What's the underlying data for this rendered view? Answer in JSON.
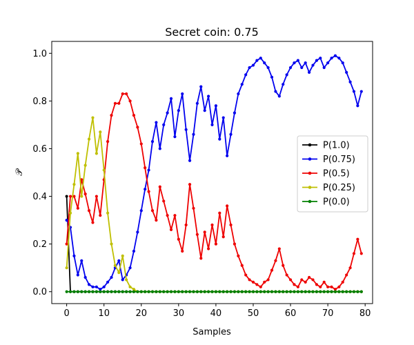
{
  "chart_data": {
    "type": "line",
    "title": "Secret coin: 0.75",
    "xlabel": "Samples",
    "ylabel": "𝒫",
    "xlim": [
      -4,
      82
    ],
    "ylim": [
      -0.05,
      1.05
    ],
    "xticks": [
      0,
      10,
      20,
      30,
      40,
      50,
      60,
      70,
      80
    ],
    "yticks": [
      0.0,
      0.2,
      0.4,
      0.6,
      0.8,
      1.0
    ],
    "xtick_labels": [
      "0",
      "10",
      "20",
      "30",
      "40",
      "50",
      "60",
      "70",
      "80"
    ],
    "ytick_labels": [
      "0.0",
      "0.2",
      "0.4",
      "0.6",
      "0.8",
      "1.0"
    ],
    "grid": false,
    "legend_position": "center-right",
    "series": [
      {
        "name": "P(1.0)",
        "color": "#000000",
        "values": [
          0.4,
          0,
          0,
          0,
          0,
          0,
          0,
          0,
          0,
          0,
          0,
          0,
          0,
          0,
          0,
          0,
          0,
          0,
          0,
          0,
          0,
          0,
          0,
          0,
          0,
          0,
          0,
          0,
          0,
          0,
          0,
          0,
          0,
          0,
          0,
          0,
          0,
          0,
          0,
          0,
          0,
          0,
          0,
          0,
          0,
          0,
          0,
          0,
          0,
          0,
          0,
          0,
          0,
          0,
          0,
          0,
          0,
          0,
          0,
          0,
          0,
          0,
          0,
          0,
          0,
          0,
          0,
          0,
          0,
          0,
          0,
          0,
          0,
          0,
          0,
          0,
          0,
          0,
          0,
          0
        ]
      },
      {
        "name": "P(0.75)",
        "color": "#0000ee",
        "values": [
          0.3,
          0.27,
          0.15,
          0.07,
          0.13,
          0.06,
          0.03,
          0.02,
          0.02,
          0.01,
          0.02,
          0.04,
          0.06,
          0.1,
          0.13,
          0.05,
          0.07,
          0.1,
          0.17,
          0.25,
          0.34,
          0.43,
          0.51,
          0.63,
          0.71,
          0.6,
          0.7,
          0.75,
          0.81,
          0.65,
          0.76,
          0.83,
          0.68,
          0.55,
          0.66,
          0.79,
          0.86,
          0.76,
          0.82,
          0.7,
          0.78,
          0.64,
          0.73,
          0.57,
          0.66,
          0.75,
          0.83,
          0.87,
          0.91,
          0.94,
          0.95,
          0.97,
          0.98,
          0.96,
          0.94,
          0.9,
          0.84,
          0.82,
          0.87,
          0.91,
          0.94,
          0.96,
          0.97,
          0.94,
          0.96,
          0.92,
          0.95,
          0.97,
          0.98,
          0.94,
          0.96,
          0.98,
          0.99,
          0.98,
          0.96,
          0.92,
          0.88,
          0.84,
          0.78,
          0.84
        ]
      },
      {
        "name": "P(0.5)",
        "color": "#ee0000",
        "values": [
          0.2,
          0.4,
          0.4,
          0.35,
          0.47,
          0.41,
          0.34,
          0.29,
          0.4,
          0.32,
          0.47,
          0.63,
          0.74,
          0.79,
          0.79,
          0.83,
          0.83,
          0.8,
          0.74,
          0.69,
          0.62,
          0.52,
          0.42,
          0.34,
          0.3,
          0.44,
          0.38,
          0.32,
          0.26,
          0.32,
          0.22,
          0.17,
          0.28,
          0.45,
          0.35,
          0.24,
          0.14,
          0.25,
          0.18,
          0.28,
          0.2,
          0.33,
          0.23,
          0.36,
          0.28,
          0.2,
          0.15,
          0.11,
          0.07,
          0.05,
          0.04,
          0.03,
          0.02,
          0.04,
          0.05,
          0.09,
          0.13,
          0.18,
          0.11,
          0.07,
          0.05,
          0.03,
          0.02,
          0.05,
          0.04,
          0.06,
          0.05,
          0.03,
          0.02,
          0.04,
          0.02,
          0.02,
          0.01,
          0.02,
          0.04,
          0.07,
          0.1,
          0.16,
          0.22,
          0.16
        ]
      },
      {
        "name": "P(0.25)",
        "color": "#bfbf00",
        "values": [
          0.1,
          0.33,
          0.45,
          0.58,
          0.4,
          0.53,
          0.64,
          0.73,
          0.58,
          0.67,
          0.51,
          0.33,
          0.2,
          0.11,
          0.08,
          0.15,
          0.05,
          0.02,
          0.01,
          0.0,
          0,
          0,
          0,
          0,
          0,
          0,
          0,
          0,
          0,
          0,
          0,
          0,
          0,
          0,
          0,
          0,
          0,
          0,
          0,
          0,
          0,
          0,
          0,
          0,
          0,
          0,
          0,
          0,
          0,
          0,
          0,
          0,
          0,
          0,
          0,
          0,
          0,
          0,
          0,
          0,
          0,
          0,
          0,
          0,
          0,
          0,
          0,
          0,
          0,
          0,
          0,
          0,
          0,
          0,
          0,
          0,
          0,
          0,
          0,
          0
        ]
      },
      {
        "name": "P(0.0)",
        "color": "#008000",
        "values": [
          0,
          0,
          0,
          0,
          0,
          0,
          0,
          0,
          0,
          0,
          0,
          0,
          0,
          0,
          0,
          0,
          0,
          0,
          0,
          0,
          0,
          0,
          0,
          0,
          0,
          0,
          0,
          0,
          0,
          0,
          0,
          0,
          0,
          0,
          0,
          0,
          0,
          0,
          0,
          0,
          0,
          0,
          0,
          0,
          0,
          0,
          0,
          0,
          0,
          0,
          0,
          0,
          0,
          0,
          0,
          0,
          0,
          0,
          0,
          0,
          0,
          0,
          0,
          0,
          0,
          0,
          0,
          0,
          0,
          0,
          0,
          0,
          0,
          0,
          0,
          0,
          0,
          0,
          0,
          0
        ]
      }
    ]
  }
}
